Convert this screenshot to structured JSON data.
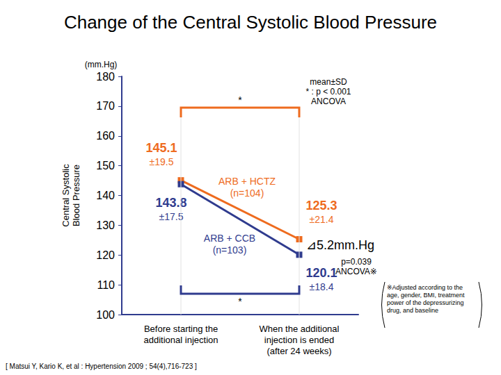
{
  "chart_data": {
    "type": "line",
    "title": "Change of the Central Systolic Blood Pressure",
    "ylabel": "Central Systolic\nBlood Pressure",
    "yunit": "(mm.Hg)",
    "categories": [
      "Before starting the\nadditional injection",
      "When the additional\ninjection is ended\n(after 24 weeks)"
    ],
    "series": [
      {
        "name": "ARB + HCTZ\n(n=104)",
        "color": "#ee6b1e",
        "values": [
          145.1,
          125.3
        ],
        "sd_labels": [
          "±19.5",
          "±21.4"
        ],
        "marker": "square",
        "line_style": "solid"
      },
      {
        "name": "ARB + CCB\n(n=103)",
        "color": "#2f3b8e",
        "values": [
          143.8,
          120.1
        ],
        "sd_labels": [
          "±17.5",
          "±18.4"
        ],
        "marker": "square",
        "line_style": "solid"
      }
    ],
    "ylim": [
      100,
      180
    ],
    "yticks": [
      100,
      110,
      120,
      130,
      140,
      150,
      160,
      170,
      180
    ],
    "grid": false,
    "data_labels": true,
    "annotations": {
      "stats_note": [
        "mean±SD",
        "* : p < 0.001",
        "ANCOVA"
      ],
      "significance_top": "*",
      "significance_bottom": "*",
      "difference": "⊿5.2mm.Hg",
      "difference_p": "p=0.039",
      "difference_test": "ANCOVA※",
      "footnote": "※Adjusted according to the age, gender, BMI, treatment power of the depressurizing drug, and baseline",
      "citation": "[ Matsui Y, Kario K, et al : Hypertension 2009 ; 54(4),716-723 ]"
    }
  }
}
